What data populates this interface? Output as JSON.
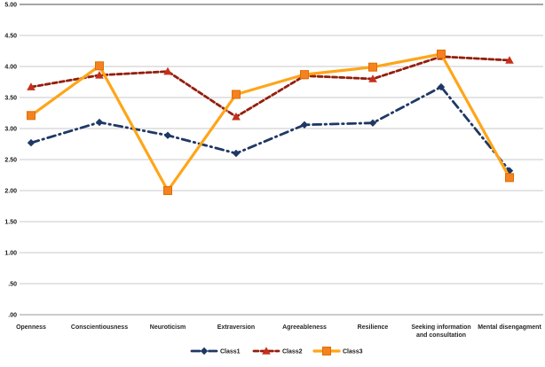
{
  "chart_data": {
    "type": "line",
    "title": "",
    "categories": [
      "Openness",
      "Conscientiousness",
      "Neuroticism",
      "Extraversion",
      "Agreeableness",
      "Resilience",
      "Seeking information and consultation",
      "Mental disengagment"
    ],
    "series": [
      {
        "name": "Class1",
        "values": [
          2.77,
          3.1,
          2.89,
          2.6,
          3.06,
          3.09,
          3.67,
          2.32
        ],
        "line_color": "#1F3864",
        "marker_color": "#1F3864",
        "line_style": "dash-dot",
        "marker": "diamond"
      },
      {
        "name": "Class2",
        "values": [
          3.67,
          3.86,
          3.92,
          3.19,
          3.85,
          3.8,
          4.16,
          4.1
        ],
        "line_color": "#941E0C",
        "marker_color": "#C5301C",
        "line_style": "dashed",
        "marker": "triangle"
      },
      {
        "name": "Class3",
        "values": [
          3.21,
          4.01,
          2.0,
          3.55,
          3.87,
          3.99,
          4.2,
          2.21
        ],
        "line_color": "#FFA519",
        "marker_color": "#F58220",
        "marker_edge_color": "#DD6F00",
        "line_style": "solid",
        "marker": "square"
      }
    ],
    "ylim": [
      0,
      5
    ],
    "ytick_step": 0.5,
    "ytick_labels": [
      "5.00",
      "4.50",
      "4.00",
      "3.50",
      "3.00",
      "2.50",
      "2.00",
      "1.50",
      "1.00",
      ".50",
      ".00"
    ],
    "grid": true,
    "grid_color": "#C9C9C9",
    "top_grid_color": "#4D4D4D",
    "baseline_color": "#999999",
    "legend_position": "bottom",
    "legend_labels": [
      "Class1",
      "Class2",
      "Class3"
    ]
  }
}
